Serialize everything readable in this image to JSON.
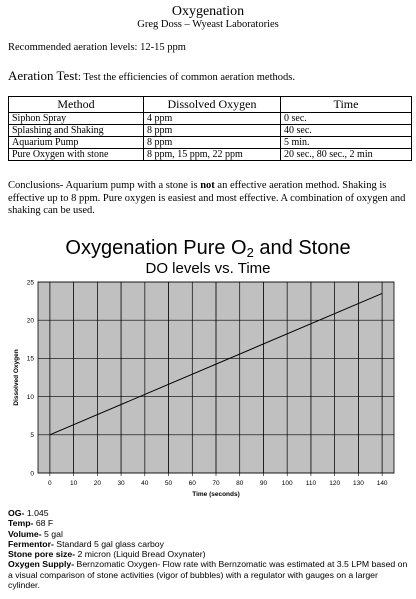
{
  "header": {
    "title": "Oxygenation",
    "author": "Greg Doss – Wyeast Laboratories"
  },
  "recommended": "Recommended aeration levels: 12-15 ppm",
  "aeration_test": {
    "label": "Aeration Test",
    "text": ":  Test the efficiencies of common aeration methods."
  },
  "table": {
    "headers": [
      "Method",
      "Dissolved Oxygen",
      "Time"
    ],
    "rows": [
      [
        "Siphon Spray",
        "4 ppm",
        "0 sec."
      ],
      [
        "Splashing and Shaking",
        "8 ppm",
        "40 sec."
      ],
      [
        "Aquarium Pump",
        "8 ppm",
        "5 min."
      ],
      [
        "Pure Oxygen with stone",
        "8 ppm, 15 ppm, 22 ppm",
        "20 sec., 80 sec., 2 min"
      ]
    ]
  },
  "conclusions": {
    "part1": "Conclusions- Aquarium pump with a stone is ",
    "emph": "not",
    "part2": " an effective aeration method.  Shaking is effective up to 8 ppm.  Pure oxygen is easiest and most effective.  A combination of oxygen and shaking can be used."
  },
  "chart_titles": {
    "title_main": "Oxygenation Pure O",
    "title_sub": "2",
    "title_end": " and Stone",
    "subtitle": "DO levels vs. Time"
  },
  "chart_data": {
    "type": "line",
    "title": "Oxygenation Pure O2 and Stone",
    "subtitle": "DO levels vs. Time",
    "xlabel": "Time (seconds)",
    "ylabel": "Dissolved Oxygen",
    "xlim": [
      -5,
      145
    ],
    "ylim": [
      0,
      25
    ],
    "x_ticks": [
      0,
      10,
      20,
      30,
      40,
      50,
      60,
      70,
      80,
      90,
      100,
      110,
      120,
      130,
      140
    ],
    "y_ticks": [
      0,
      5,
      10,
      15,
      20,
      25
    ],
    "grid": true,
    "background": "#c0c0c0",
    "series": [
      {
        "x": [
          0,
          140
        ],
        "y": [
          5,
          23.5
        ]
      }
    ]
  },
  "specs": [
    {
      "label": "OG-",
      "value": " 1.045"
    },
    {
      "label": "Temp-",
      "value": " 68 F"
    },
    {
      "label": "Volume-",
      "value": " 5 gal"
    },
    {
      "label": "Fermentor-",
      "value": " Standard 5 gal glass carboy"
    },
    {
      "label": "Stone pore size-",
      "value": " 2 micron (Liquid Bread Oxynater)"
    },
    {
      "label": "Oxygen Supply-",
      "value": " Bernzomatic Oxygen- Flow rate with Bernzomatic was estimated at 3.5 LPM based on a visual comparison of stone activities (vigor of bubbles) with a regulator with gauges on a larger cylinder."
    }
  ]
}
